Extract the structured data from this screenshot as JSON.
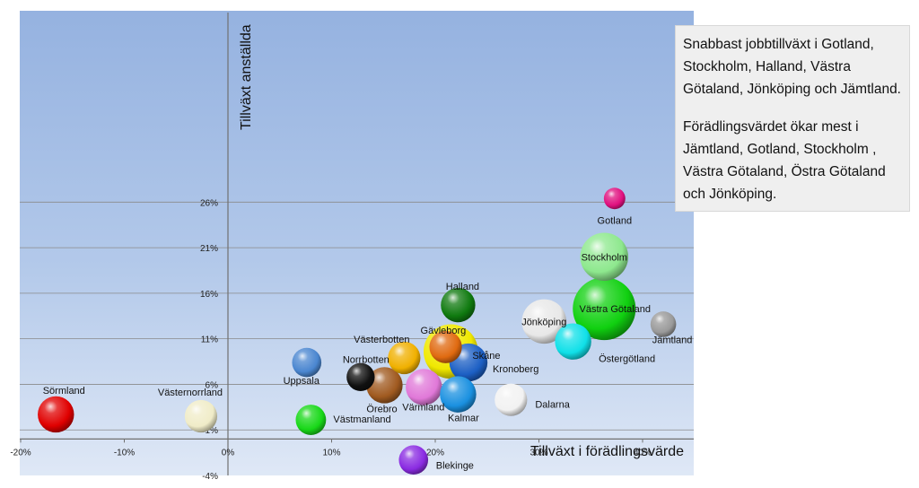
{
  "chart_data": {
    "type": "bubble",
    "x_axis": {
      "label": "Tillväxt i förädlingsvärde",
      "min": -0.2,
      "max": 0.45,
      "ticks": [
        "-20%",
        "-10%",
        "0%",
        "10%",
        "20%",
        "30%",
        "40%"
      ]
    },
    "y_axis": {
      "label": "Tillväxt anställda",
      "min": -0.04,
      "max": 0.28,
      "ticks": [
        "-4%",
        "1%",
        "6%",
        "11%",
        "16%",
        "21%",
        "26%"
      ]
    },
    "grid": "horizontal",
    "points": [
      {
        "name": "Gotland",
        "x": 0.373,
        "y": 0.264,
        "size": 0.7,
        "color": "#e0107f"
      },
      {
        "name": "Stockholm",
        "x": 0.363,
        "y": 0.2,
        "size": 3.5,
        "color": "#8ee88e"
      },
      {
        "name": "Västra Götaland",
        "x": 0.363,
        "y": 0.143,
        "size": 6.0,
        "color": "#10d010"
      },
      {
        "name": "Jämtland",
        "x": 0.42,
        "y": 0.126,
        "size": 1.0,
        "color": "#9a9a9a"
      },
      {
        "name": "Jönköping",
        "x": 0.305,
        "y": 0.129,
        "size": 3.0,
        "color": "#e8e8e8"
      },
      {
        "name": "Östergötland",
        "x": 0.333,
        "y": 0.107,
        "size": 2.0,
        "color": "#10e0e8"
      },
      {
        "name": "Halland",
        "x": 0.222,
        "y": 0.147,
        "size": 1.8,
        "color": "#0f7a0f"
      },
      {
        "name": "Skåne",
        "x": 0.215,
        "y": 0.096,
        "size": 4.5,
        "color": "#f0e800"
      },
      {
        "name": "Gävleborg",
        "x": 0.21,
        "y": 0.101,
        "size": 1.6,
        "color": "#e06a10"
      },
      {
        "name": "Kronoberg",
        "x": 0.232,
        "y": 0.084,
        "size": 2.2,
        "color": "#1c5fc4"
      },
      {
        "name": "Västerbotten",
        "x": 0.17,
        "y": 0.089,
        "size": 1.6,
        "color": "#f0b000"
      },
      {
        "name": "Uppsala",
        "x": 0.076,
        "y": 0.084,
        "size": 1.3,
        "color": "#4a86d0"
      },
      {
        "name": "Norrbotten",
        "x": 0.128,
        "y": 0.068,
        "size": 1.2,
        "color": "#111111"
      },
      {
        "name": "Örebro",
        "x": 0.151,
        "y": 0.059,
        "size": 2.0,
        "color": "#a05a20"
      },
      {
        "name": "Värmland",
        "x": 0.189,
        "y": 0.057,
        "size": 2.0,
        "color": "#e078d8"
      },
      {
        "name": "Kalmar",
        "x": 0.222,
        "y": 0.049,
        "size": 2.0,
        "color": "#1a90e0"
      },
      {
        "name": "Dalarna",
        "x": 0.273,
        "y": 0.043,
        "size": 1.6,
        "color": "#f2f2f2"
      },
      {
        "name": "Sörmland",
        "x": -0.166,
        "y": 0.027,
        "size": 2.0,
        "color": "#e00000"
      },
      {
        "name": "Västernorrland",
        "x": -0.026,
        "y": 0.025,
        "size": 1.6,
        "color": "#f0ecc8"
      },
      {
        "name": "Västmanland",
        "x": 0.08,
        "y": 0.021,
        "size": 1.4,
        "color": "#18d818"
      },
      {
        "name": "Blekinge",
        "x": 0.179,
        "y": -0.023,
        "size": 1.3,
        "color": "#8a2be2"
      }
    ]
  },
  "note": {
    "paragraph1": "Snabbast jobbtillväxt i Gotland, Stockholm, Halland, Västra Götaland, Jönköping och Jämtland.",
    "paragraph2": "Förädlingsvärdet ökar mest i Jämtland, Gotland, Stockholm , Västra Götaland, Östra Götaland och Jönköping."
  }
}
